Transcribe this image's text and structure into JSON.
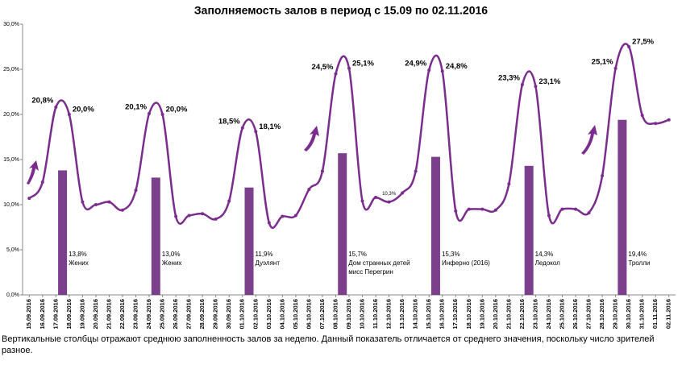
{
  "chart_data": {
    "type": "line-bar",
    "title": "Заполняемость залов в период с 15.09 по 02.11.2016",
    "categories": [
      "15.09.2016",
      "16.09.2016",
      "17.09.2016",
      "18.09.2016",
      "19.09.2016",
      "20.09.2016",
      "21.09.2016",
      "22.09.2016",
      "23.09.2016",
      "24.09.2016",
      "25.09.2016",
      "26.09.2016",
      "27.09.2016",
      "28.09.2016",
      "29.09.2016",
      "30.09.2016",
      "01.10.2016",
      "02.10.2016",
      "03.10.2016",
      "04.10.2016",
      "05.10.2016",
      "06.10.2016",
      "07.10.2016",
      "08.10.2016",
      "09.10.2016",
      "10.10.2016",
      "11.10.2016",
      "12.10.2016",
      "13.10.2016",
      "14.10.2016",
      "15.10.2016",
      "16.10.2016",
      "17.10.2016",
      "18.10.2016",
      "19.10.2016",
      "20.10.2016",
      "21.10.2016",
      "22.10.2016",
      "23.10.2016",
      "24.10.2016",
      "25.10.2016",
      "26.10.2016",
      "27.10.2016",
      "28.10.2016",
      "29.10.2016",
      "30.10.2016",
      "31.10.2016",
      "01.11.2016",
      "02.11.2016"
    ],
    "category_colors": [
      "#000000",
      "#000000",
      "#c0392b",
      "#c0392b",
      "#000000",
      "#000000",
      "#000000",
      "#000000",
      "#000000",
      "#c0392b",
      "#c0392b",
      "#000000",
      "#000000",
      "#000000",
      "#000000",
      "#000000",
      "#c0392b",
      "#c0392b",
      "#000000",
      "#000000",
      "#000000",
      "#000000",
      "#000000",
      "#c0392b",
      "#c0392b",
      "#000000",
      "#000000",
      "#000000",
      "#000000",
      "#000000",
      "#c0392b",
      "#c0392b",
      "#000000",
      "#000000",
      "#000000",
      "#000000",
      "#000000",
      "#c0392b",
      "#c0392b",
      "#000000",
      "#000000",
      "#000000",
      "#000000",
      "#000000",
      "#c0392b",
      "#c0392b",
      "#000000",
      "#000000",
      "#000000"
    ],
    "line": {
      "color": "#7b2d8e",
      "values": [
        10.7,
        12.5,
        20.8,
        20.0,
        10.3,
        10.0,
        10.3,
        9.4,
        11.6,
        20.1,
        20.0,
        8.7,
        8.8,
        9.0,
        8.4,
        10.4,
        18.5,
        18.1,
        8.0,
        8.7,
        8.8,
        11.7,
        13.7,
        24.5,
        25.1,
        10.4,
        10.8,
        10.3,
        11.3,
        13.7,
        24.9,
        24.8,
        9.3,
        9.5,
        9.5,
        9.4,
        12.3,
        23.3,
        23.1,
        8.8,
        9.5,
        9.5,
        9.1,
        13.2,
        25.1,
        27.5,
        19.9,
        19.0,
        19.4
      ],
      "value_labels": [
        null,
        null,
        "20,8%",
        "20,0%",
        null,
        null,
        null,
        null,
        null,
        "20,1%",
        "20,0%",
        null,
        null,
        null,
        null,
        null,
        "18,5%",
        "18,1%",
        null,
        null,
        null,
        null,
        null,
        "24,5%",
        "25,1%",
        null,
        null,
        "10,3%",
        null,
        null,
        "24,9%",
        "24,8%",
        null,
        null,
        null,
        null,
        null,
        "23,3%",
        "23,1%",
        null,
        null,
        null,
        null,
        null,
        "25,1%",
        "27,5%",
        null,
        null,
        null
      ]
    },
    "bars": {
      "color": "#7b3f8c",
      "values": [
        null,
        null,
        13.8,
        null,
        null,
        null,
        null,
        null,
        null,
        13.0,
        null,
        null,
        null,
        null,
        null,
        null,
        11.9,
        null,
        null,
        null,
        null,
        null,
        null,
        15.7,
        null,
        null,
        null,
        null,
        null,
        null,
        15.3,
        null,
        null,
        null,
        null,
        null,
        null,
        14.3,
        null,
        null,
        null,
        null,
        null,
        null,
        19.4,
        null,
        null,
        null,
        null
      ],
      "value_labels": [
        null,
        null,
        "13,8%",
        null,
        null,
        null,
        null,
        null,
        null,
        "13,0%",
        null,
        null,
        null,
        null,
        null,
        null,
        "11,9%",
        null,
        null,
        null,
        null,
        null,
        null,
        "15,7%",
        null,
        null,
        null,
        null,
        null,
        null,
        "15,3%",
        null,
        null,
        null,
        null,
        null,
        null,
        "14,3%",
        null,
        null,
        null,
        null,
        null,
        null,
        "19,4%",
        null,
        null,
        null,
        null
      ],
      "labels": [
        null,
        null,
        [
          "Жених"
        ],
        null,
        null,
        null,
        null,
        null,
        null,
        [
          "Жених"
        ],
        null,
        null,
        null,
        null,
        null,
        null,
        [
          "Дуэлянт"
        ],
        null,
        null,
        null,
        null,
        null,
        null,
        [
          "Дом странных детей",
          "мисс Перегрин"
        ],
        null,
        null,
        null,
        null,
        null,
        null,
        [
          "Инферно (2016)"
        ],
        null,
        null,
        null,
        null,
        null,
        null,
        [
          "Ледокол"
        ],
        null,
        null,
        null,
        null,
        null,
        null,
        [
          "Тролли"
        ],
        null,
        null,
        null,
        null
      ]
    },
    "ylim": [
      0,
      30
    ],
    "yticks": [
      {
        "value": 0,
        "label": "0,0%"
      },
      {
        "value": 5,
        "label": "5,0%"
      },
      {
        "value": 10,
        "label": "10,0%"
      },
      {
        "value": 15,
        "label": "15,0%"
      },
      {
        "value": 20,
        "label": "20,0%"
      },
      {
        "value": 25,
        "label": "25,0%"
      },
      {
        "value": 30,
        "label": "30,0%"
      }
    ],
    "note": "Вертикальные столбцы отражают среднюю заполненность залов за неделю. Данный показатель отличается от среднего значения, поскольку число зрителей разное."
  }
}
